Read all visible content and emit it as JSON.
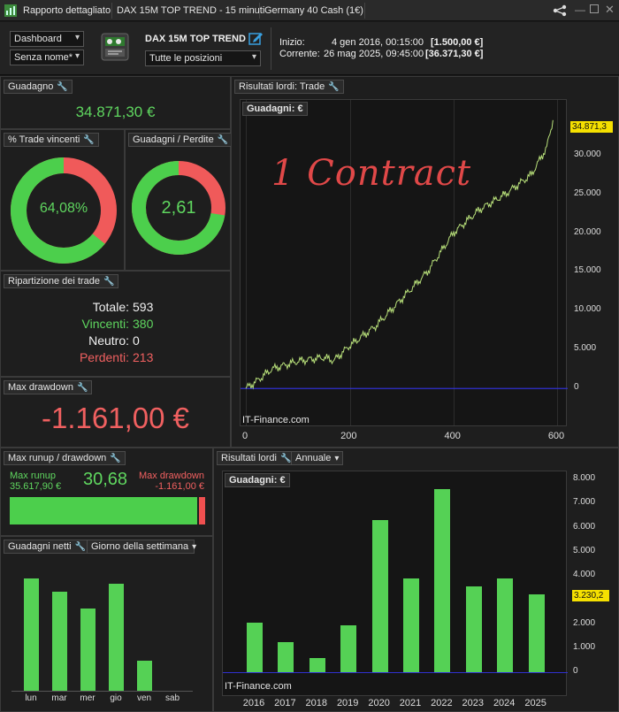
{
  "titlebar": {
    "app": "Rapporto dettagliato",
    "strategy": "DAX 15M TOP TREND - 15 minuti",
    "instrument": "Germany 40 Cash (1€)"
  },
  "header": {
    "dashboard_select": "Dashboard",
    "name_select": "Senza nome*",
    "strategy_title": "DAX 15M TOP TREND",
    "positions_select": "Tutte le posizioni",
    "start_label": "Inizio:",
    "start_date": "4 gen 2016, 00:15:00",
    "start_value": "[1.500,00 €]",
    "current_label": "Corrente:",
    "current_date": "26 mag 2025, 09:45:00",
    "current_value": "[36.371,30 €]"
  },
  "gain": {
    "title": "Guadagno",
    "value": "34.871,30 €"
  },
  "win_pct": {
    "title": "% Trade vincenti",
    "value": "64,08%",
    "fraction": 0.6408
  },
  "gain_loss": {
    "title": "Guadagni / Perdite",
    "value": "2,61",
    "fraction": 0.723
  },
  "breakdown": {
    "title": "Ripartizione dei trade",
    "rows": [
      {
        "label": "Totale:",
        "value": "593"
      },
      {
        "label": "Vincenti:",
        "value": "380"
      },
      {
        "label": "Neutro:",
        "value": "0"
      },
      {
        "label": "Perdenti:",
        "value": "213"
      }
    ]
  },
  "max_dd": {
    "title": "Max drawdown",
    "value": "-1.161,00 €"
  },
  "runup": {
    "title": "Max runup / drawdown",
    "runup_label": "Max runup",
    "runup_value": "35.617,90 €",
    "ratio": "30,68",
    "dd_label": "Max drawdown",
    "dd_value": "-1.161,00 €",
    "fraction": 0.968
  },
  "net_gain": {
    "title": "Guadagni netti",
    "period_select": "Giorno della settimana",
    "days": [
      "lun",
      "mar",
      "mer",
      "gio",
      "ven",
      "sab"
    ],
    "values": [
      4.1,
      3.6,
      3.0,
      3.9,
      1.1,
      0
    ]
  },
  "equity_chart": {
    "title": "Risultati lordi: Trade",
    "subtitle": "Guadagni: €",
    "annotation": "1 Contract",
    "watermark": "IT-Finance.com",
    "last_label": "34.871,3",
    "yticks": [
      "30.000",
      "25.000",
      "20.000",
      "15.000",
      "10.000",
      "5.000",
      "0"
    ],
    "xticks": [
      "0",
      "200",
      "400",
      "600"
    ]
  },
  "annual_chart": {
    "title": "Risultati lordi",
    "period_select": "Annuale",
    "subtitle": "Guadagni: €",
    "watermark": "IT-Finance.com",
    "last_label": "3.230,2",
    "yticks": [
      "8.000",
      "7.000",
      "6.000",
      "5.000",
      "4.000",
      "3.000",
      "2.000",
      "1.000",
      "0"
    ]
  },
  "chart_data": [
    {
      "type": "line",
      "title": "Guadagni: €",
      "xlabel": "",
      "ylabel": "",
      "xlim": [
        0,
        610
      ],
      "ylim": [
        -1000,
        36000
      ],
      "x": [
        0,
        20,
        50,
        100,
        150,
        170,
        200,
        250,
        300,
        350,
        400,
        450,
        500,
        550,
        580,
        593
      ],
      "y": [
        0,
        900,
        2500,
        3500,
        4000,
        3600,
        5500,
        8000,
        11500,
        15000,
        20000,
        23000,
        25000,
        27500,
        31000,
        34871.3
      ]
    },
    {
      "type": "bar",
      "title": "Guadagni: €",
      "categories": [
        "2016",
        "2017",
        "2018",
        "2019",
        "2020",
        "2021",
        "2022",
        "2023",
        "2024",
        "2025"
      ],
      "values": [
        2050,
        1250,
        600,
        1950,
        6300,
        3900,
        7600,
        3550,
        3900,
        3230.2
      ],
      "ylim": [
        0,
        8200
      ]
    },
    {
      "type": "bar",
      "title": "",
      "categories": [
        "lun",
        "mar",
        "mer",
        "gio",
        "ven",
        "sab"
      ],
      "values": [
        4.1,
        3.6,
        3.0,
        3.9,
        1.1,
        0
      ]
    }
  ]
}
